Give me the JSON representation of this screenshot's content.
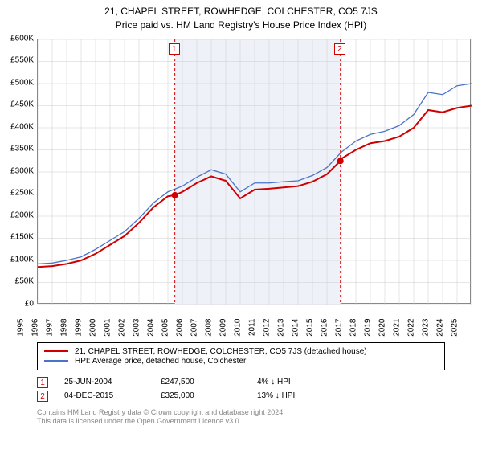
{
  "title_line1": "21, CHAPEL STREET, ROWHEDGE, COLCHESTER, CO5 7JS",
  "title_line2": "Price paid vs. HM Land Registry's House Price Index (HPI)",
  "chart": {
    "type": "line",
    "background_color": "#ffffff",
    "grid_color": "#cccccc",
    "shaded_region_color": "#eef2f8",
    "shaded_x_start": 2004.48,
    "shaded_x_end": 2015.93,
    "xlim": [
      1995,
      2025
    ],
    "xticks": [
      1995,
      1996,
      1997,
      1998,
      1999,
      2000,
      2001,
      2002,
      2003,
      2004,
      2005,
      2006,
      2007,
      2008,
      2009,
      2010,
      2011,
      2012,
      2013,
      2014,
      2015,
      2016,
      2017,
      2018,
      2019,
      2020,
      2021,
      2022,
      2023,
      2024,
      2025
    ],
    "ylim": [
      0,
      600000
    ],
    "yticks": [
      0,
      50000,
      100000,
      150000,
      200000,
      250000,
      300000,
      350000,
      400000,
      450000,
      500000,
      550000,
      600000
    ],
    "ytick_labels": [
      "£0",
      "£50K",
      "£100K",
      "£150K",
      "£200K",
      "£250K",
      "£300K",
      "£350K",
      "£400K",
      "£450K",
      "£500K",
      "£550K",
      "£600K"
    ],
    "series": [
      {
        "name": "21, CHAPEL STREET, ROWHEDGE, COLCHESTER, CO5 7JS (detached house)",
        "color": "#d00000",
        "line_width": 2,
        "x": [
          1995,
          1996,
          1997,
          1998,
          1999,
          2000,
          2001,
          2002,
          2003,
          2004,
          2004.48,
          2005,
          2006,
          2007,
          2008,
          2009,
          2010,
          2011,
          2012,
          2013,
          2014,
          2015,
          2015.93,
          2016,
          2017,
          2018,
          2019,
          2020,
          2021,
          2022,
          2023,
          2024,
          2025
        ],
        "y": [
          85000,
          87000,
          92000,
          100000,
          115000,
          135000,
          155000,
          185000,
          220000,
          245000,
          247500,
          255000,
          275000,
          290000,
          280000,
          240000,
          260000,
          262000,
          265000,
          268000,
          278000,
          295000,
          325000,
          330000,
          350000,
          365000,
          370000,
          380000,
          400000,
          440000,
          435000,
          445000,
          450000
        ]
      },
      {
        "name": "HPI: Average price, detached house, Colchester",
        "color": "#4a74c9",
        "line_width": 1.3,
        "x": [
          1995,
          1996,
          1997,
          1998,
          1999,
          2000,
          2001,
          2002,
          2003,
          2004,
          2005,
          2006,
          2007,
          2008,
          2009,
          2010,
          2011,
          2012,
          2013,
          2014,
          2015,
          2016,
          2017,
          2018,
          2019,
          2020,
          2021,
          2022,
          2023,
          2024,
          2025
        ],
        "y": [
          92000,
          94000,
          100000,
          108000,
          125000,
          145000,
          165000,
          195000,
          230000,
          255000,
          268000,
          288000,
          305000,
          295000,
          255000,
          275000,
          275000,
          278000,
          280000,
          292000,
          310000,
          345000,
          370000,
          385000,
          392000,
          405000,
          430000,
          480000,
          475000,
          495000,
          500000
        ]
      }
    ],
    "markers": [
      {
        "id": "1",
        "x": 2004.48,
        "y": 247500,
        "dot_color": "#d00000"
      },
      {
        "id": "2",
        "x": 2015.93,
        "y": 325000,
        "dot_color": "#d00000"
      }
    ],
    "marker_line_dash": "3,3",
    "marker_line_color": "#d00000"
  },
  "legend": {
    "items": [
      {
        "color": "#d00000",
        "label": "21, CHAPEL STREET, ROWHEDGE, COLCHESTER, CO5 7JS (detached house)"
      },
      {
        "color": "#4a74c9",
        "label": "HPI: Average price, detached house, Colchester"
      }
    ]
  },
  "transactions": [
    {
      "id": "1",
      "date": "25-JUN-2004",
      "price": "£247,500",
      "delta": "4%",
      "arrow": "↓",
      "vs": "HPI"
    },
    {
      "id": "2",
      "date": "04-DEC-2015",
      "price": "£325,000",
      "delta": "13%",
      "arrow": "↓",
      "vs": "HPI"
    }
  ],
  "credits_line1": "Contains HM Land Registry data © Crown copyright and database right 2024.",
  "credits_line2": "This data is licensed under the Open Government Licence v3.0."
}
